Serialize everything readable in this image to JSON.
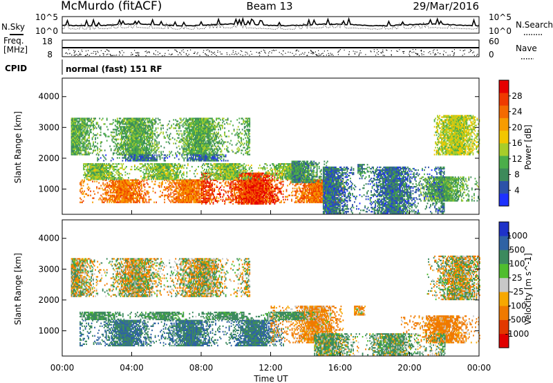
{
  "chart_data": {
    "type": "heatmap",
    "header": {
      "station": "McMurdo (fitACF)",
      "beam": "Beam 13",
      "date": "29/Mar/2016"
    },
    "noise_panel": {
      "left_label": "N.Sky",
      "right_label": "N.Search",
      "left_ticks": [
        "10^5",
        "10^0"
      ],
      "right_ticks": [
        "10^5",
        "10^0"
      ]
    },
    "freq_panel": {
      "left_label_line1": "Freq.",
      "left_label_line2": "[MHz]",
      "left_ticks": [
        "18",
        "8"
      ],
      "right_label": "Nave",
      "right_ticks": [
        "60",
        "0"
      ]
    },
    "cpid": {
      "label": "CPID",
      "value": "normal (fast) 151 RF"
    },
    "x_axis": {
      "label": "Time UT",
      "ticks": [
        "00:00",
        "04:00",
        "08:00",
        "12:00",
        "16:00",
        "20:00",
        "00:00"
      ],
      "range_hours": [
        0,
        24
      ]
    },
    "y_axis": {
      "label": "Slant Range [km]",
      "ticks": [
        1000,
        2000,
        3000,
        4000
      ],
      "range_km": [
        180,
        4600
      ]
    },
    "power_panel": {
      "colorbar_label": "Power [dB]",
      "colorbar_ticks": [
        "4",
        "8",
        "12",
        "16",
        "20",
        "24",
        "28"
      ],
      "colors": [
        "#1e32ff",
        "#2d52a8",
        "#3d8a5a",
        "#4cae4a",
        "#a8cd2a",
        "#f2c600",
        "#f79c00",
        "#f46a00",
        "#ef3a00",
        "#e60000"
      ],
      "regions": [
        {
          "t0": 1.0,
          "t1": 16.2,
          "r0": 550,
          "r1": 1300,
          "power": 24
        },
        {
          "t0": 8.0,
          "t1": 12.8,
          "r0": 500,
          "r1": 1500,
          "power": 28
        },
        {
          "t0": 1.2,
          "t1": 15.0,
          "r0": 1300,
          "r1": 1800,
          "power": 14
        },
        {
          "t0": 0.5,
          "t1": 10.8,
          "r0": 2100,
          "r1": 3300,
          "power": 12
        },
        {
          "t0": 2.0,
          "t1": 9.5,
          "r0": 1900,
          "r1": 2100,
          "power": 8
        },
        {
          "t0": 13.2,
          "t1": 15.4,
          "r0": 1200,
          "r1": 1900,
          "power": 10
        },
        {
          "t0": 17.0,
          "t1": 17.6,
          "r0": 1500,
          "r1": 1800,
          "power": 10
        },
        {
          "t0": 20.5,
          "t1": 24.0,
          "r0": 600,
          "r1": 1400,
          "power": 12
        },
        {
          "t0": 21.4,
          "t1": 24.0,
          "r0": 2100,
          "r1": 3400,
          "power": 16
        },
        {
          "t0": 15.0,
          "t1": 22.0,
          "r0": 200,
          "r1": 1700,
          "power": 8
        }
      ]
    },
    "velocity_panel": {
      "colorbar_label": "Velocity [m s^-1]",
      "colorbar_ticks": [
        "1000",
        "500",
        "100",
        "25",
        "-25",
        "-100",
        "-500",
        "-1000"
      ],
      "colors": [
        "#1e32c8",
        "#2f62a4",
        "#3c8a5e",
        "#4fbe2e",
        "#c8c8c8",
        "#f7a800",
        "#f07a00",
        "#e23800",
        "#e00000"
      ],
      "regions": [
        {
          "t0": 1.0,
          "t1": 12.8,
          "r0": 500,
          "r1": 1350,
          "velocity": 300
        },
        {
          "t0": 12.0,
          "t1": 16.2,
          "r0": 600,
          "r1": 1800,
          "velocity": -120
        },
        {
          "t0": 1.0,
          "t1": 15.0,
          "r0": 1350,
          "r1": 1600,
          "velocity": 150
        },
        {
          "t0": 0.5,
          "t1": 10.8,
          "r0": 2100,
          "r1": 3350,
          "velocity": 0
        },
        {
          "t0": 21.0,
          "t1": 24.0,
          "r0": 2000,
          "r1": 3400,
          "velocity": 0
        },
        {
          "t0": 19.5,
          "t1": 24.0,
          "r0": 600,
          "r1": 1500,
          "velocity": -150
        },
        {
          "t0": 16.8,
          "t1": 17.4,
          "r0": 1500,
          "r1": 1800,
          "velocity": -80
        },
        {
          "t0": 14.5,
          "t1": 22.0,
          "r0": 200,
          "r1": 900,
          "velocity": 80
        }
      ]
    }
  }
}
